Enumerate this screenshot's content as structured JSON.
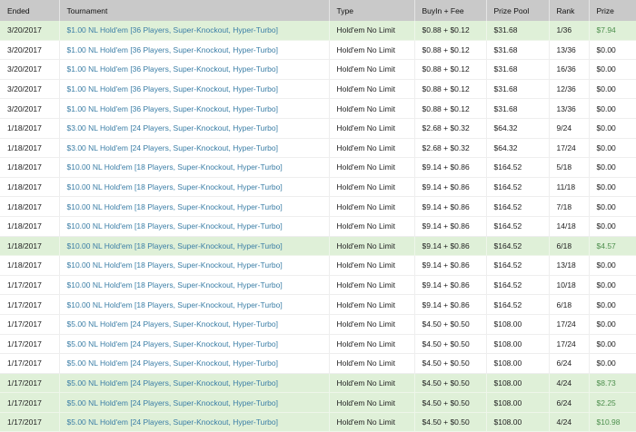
{
  "columns": [
    "Ended",
    "Tournament",
    "Type",
    "BuyIn + Fee",
    "Prize Pool",
    "Rank",
    "Prize"
  ],
  "colors": {
    "header_bg": "#c9c9c9",
    "win_row_bg": "#dff0d8",
    "link": "#3b7ea6",
    "win_prize": "#4d8f4d"
  },
  "rows": [
    {
      "ended": "3/20/2017",
      "tournament": "$1.00 NL Hold'em [36 Players, Super-Knockout, Hyper-Turbo]",
      "type": "Hold'em No Limit",
      "buyin": "$0.88 + $0.12",
      "pool": "$31.68",
      "rank": "1/36",
      "prize": "$7.94",
      "win": true
    },
    {
      "ended": "3/20/2017",
      "tournament": "$1.00 NL Hold'em [36 Players, Super-Knockout, Hyper-Turbo]",
      "type": "Hold'em No Limit",
      "buyin": "$0.88 + $0.12",
      "pool": "$31.68",
      "rank": "13/36",
      "prize": "$0.00",
      "win": false
    },
    {
      "ended": "3/20/2017",
      "tournament": "$1.00 NL Hold'em [36 Players, Super-Knockout, Hyper-Turbo]",
      "type": "Hold'em No Limit",
      "buyin": "$0.88 + $0.12",
      "pool": "$31.68",
      "rank": "16/36",
      "prize": "$0.00",
      "win": false
    },
    {
      "ended": "3/20/2017",
      "tournament": "$1.00 NL Hold'em [36 Players, Super-Knockout, Hyper-Turbo]",
      "type": "Hold'em No Limit",
      "buyin": "$0.88 + $0.12",
      "pool": "$31.68",
      "rank": "12/36",
      "prize": "$0.00",
      "win": false
    },
    {
      "ended": "3/20/2017",
      "tournament": "$1.00 NL Hold'em [36 Players, Super-Knockout, Hyper-Turbo]",
      "type": "Hold'em No Limit",
      "buyin": "$0.88 + $0.12",
      "pool": "$31.68",
      "rank": "13/36",
      "prize": "$0.00",
      "win": false
    },
    {
      "ended": "1/18/2017",
      "tournament": "$3.00 NL Hold'em [24 Players, Super-Knockout, Hyper-Turbo]",
      "type": "Hold'em No Limit",
      "buyin": "$2.68 + $0.32",
      "pool": "$64.32",
      "rank": "9/24",
      "prize": "$0.00",
      "win": false
    },
    {
      "ended": "1/18/2017",
      "tournament": "$3.00 NL Hold'em [24 Players, Super-Knockout, Hyper-Turbo]",
      "type": "Hold'em No Limit",
      "buyin": "$2.68 + $0.32",
      "pool": "$64.32",
      "rank": "17/24",
      "prize": "$0.00",
      "win": false
    },
    {
      "ended": "1/18/2017",
      "tournament": "$10.00 NL Hold'em [18 Players, Super-Knockout, Hyper-Turbo]",
      "type": "Hold'em No Limit",
      "buyin": "$9.14 + $0.86",
      "pool": "$164.52",
      "rank": "5/18",
      "prize": "$0.00",
      "win": false
    },
    {
      "ended": "1/18/2017",
      "tournament": "$10.00 NL Hold'em [18 Players, Super-Knockout, Hyper-Turbo]",
      "type": "Hold'em No Limit",
      "buyin": "$9.14 + $0.86",
      "pool": "$164.52",
      "rank": "11/18",
      "prize": "$0.00",
      "win": false
    },
    {
      "ended": "1/18/2017",
      "tournament": "$10.00 NL Hold'em [18 Players, Super-Knockout, Hyper-Turbo]",
      "type": "Hold'em No Limit",
      "buyin": "$9.14 + $0.86",
      "pool": "$164.52",
      "rank": "7/18",
      "prize": "$0.00",
      "win": false
    },
    {
      "ended": "1/18/2017",
      "tournament": "$10.00 NL Hold'em [18 Players, Super-Knockout, Hyper-Turbo]",
      "type": "Hold'em No Limit",
      "buyin": "$9.14 + $0.86",
      "pool": "$164.52",
      "rank": "14/18",
      "prize": "$0.00",
      "win": false
    },
    {
      "ended": "1/18/2017",
      "tournament": "$10.00 NL Hold'em [18 Players, Super-Knockout, Hyper-Turbo]",
      "type": "Hold'em No Limit",
      "buyin": "$9.14 + $0.86",
      "pool": "$164.52",
      "rank": "6/18",
      "prize": "$4.57",
      "win": true
    },
    {
      "ended": "1/18/2017",
      "tournament": "$10.00 NL Hold'em [18 Players, Super-Knockout, Hyper-Turbo]",
      "type": "Hold'em No Limit",
      "buyin": "$9.14 + $0.86",
      "pool": "$164.52",
      "rank": "13/18",
      "prize": "$0.00",
      "win": false
    },
    {
      "ended": "1/17/2017",
      "tournament": "$10.00 NL Hold'em [18 Players, Super-Knockout, Hyper-Turbo]",
      "type": "Hold'em No Limit",
      "buyin": "$9.14 + $0.86",
      "pool": "$164.52",
      "rank": "10/18",
      "prize": "$0.00",
      "win": false
    },
    {
      "ended": "1/17/2017",
      "tournament": "$10.00 NL Hold'em [18 Players, Super-Knockout, Hyper-Turbo]",
      "type": "Hold'em No Limit",
      "buyin": "$9.14 + $0.86",
      "pool": "$164.52",
      "rank": "6/18",
      "prize": "$0.00",
      "win": false
    },
    {
      "ended": "1/17/2017",
      "tournament": "$5.00 NL Hold'em [24 Players, Super-Knockout, Hyper-Turbo]",
      "type": "Hold'em No Limit",
      "buyin": "$4.50 + $0.50",
      "pool": "$108.00",
      "rank": "17/24",
      "prize": "$0.00",
      "win": false
    },
    {
      "ended": "1/17/2017",
      "tournament": "$5.00 NL Hold'em [24 Players, Super-Knockout, Hyper-Turbo]",
      "type": "Hold'em No Limit",
      "buyin": "$4.50 + $0.50",
      "pool": "$108.00",
      "rank": "17/24",
      "prize": "$0.00",
      "win": false
    },
    {
      "ended": "1/17/2017",
      "tournament": "$5.00 NL Hold'em [24 Players, Super-Knockout, Hyper-Turbo]",
      "type": "Hold'em No Limit",
      "buyin": "$4.50 + $0.50",
      "pool": "$108.00",
      "rank": "6/24",
      "prize": "$0.00",
      "win": false
    },
    {
      "ended": "1/17/2017",
      "tournament": "$5.00 NL Hold'em [24 Players, Super-Knockout, Hyper-Turbo]",
      "type": "Hold'em No Limit",
      "buyin": "$4.50 + $0.50",
      "pool": "$108.00",
      "rank": "4/24",
      "prize": "$8.73",
      "win": true
    },
    {
      "ended": "1/17/2017",
      "tournament": "$5.00 NL Hold'em [24 Players, Super-Knockout, Hyper-Turbo]",
      "type": "Hold'em No Limit",
      "buyin": "$4.50 + $0.50",
      "pool": "$108.00",
      "rank": "6/24",
      "prize": "$2.25",
      "win": true
    },
    {
      "ended": "1/17/2017",
      "tournament": "$5.00 NL Hold'em [24 Players, Super-Knockout, Hyper-Turbo]",
      "type": "Hold'em No Limit",
      "buyin": "$4.50 + $0.50",
      "pool": "$108.00",
      "rank": "4/24",
      "prize": "$10.98",
      "win": true
    }
  ]
}
